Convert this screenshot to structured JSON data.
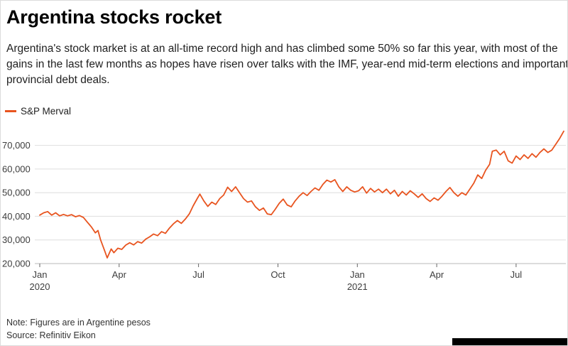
{
  "header": {
    "title": "Argentina stocks rocket",
    "description": "Argentina's stock market is at an all-time record high and has climbed some 50% so far this year, with most of the gains in the last few months as hopes have risen over talks with the IMF, year-end mid-term elections and important provincial debt deals."
  },
  "legend": {
    "label": "S&P Merval",
    "color": "#e8541f"
  },
  "footer": {
    "note": "Note: Figures are in Argentine pesos",
    "source": "Source: Refinitiv Eikon"
  },
  "chart_data": {
    "type": "line",
    "title": "Argentina stocks rocket",
    "x_unit": "months since Jan 2020",
    "ylim": [
      20000,
      78000
    ],
    "grid": true,
    "legend_position": "top-left",
    "y_ticks": [
      20000,
      30000,
      40000,
      50000,
      60000,
      70000
    ],
    "y_tick_labels": [
      "20,000",
      "30,000",
      "40,000",
      "50,000",
      "60,000",
      "70,000"
    ],
    "x_ticks": [
      {
        "t": 0,
        "label": "Jan",
        "year": "2020"
      },
      {
        "t": 3,
        "label": "Apr"
      },
      {
        "t": 6,
        "label": "Jul"
      },
      {
        "t": 9,
        "label": "Oct"
      },
      {
        "t": 12,
        "label": "Jan",
        "year": "2021"
      },
      {
        "t": 15,
        "label": "Apr"
      },
      {
        "t": 18,
        "label": "Jul"
      }
    ],
    "series": [
      {
        "name": "S&P Merval",
        "color": "#e8541f",
        "points": [
          [
            0,
            40500
          ],
          [
            0.15,
            41500
          ],
          [
            0.3,
            42000
          ],
          [
            0.45,
            40500
          ],
          [
            0.6,
            41500
          ],
          [
            0.75,
            40200
          ],
          [
            0.9,
            40800
          ],
          [
            1.05,
            40200
          ],
          [
            1.2,
            40700
          ],
          [
            1.35,
            39800
          ],
          [
            1.5,
            40300
          ],
          [
            1.65,
            39500
          ],
          [
            1.8,
            37500
          ],
          [
            1.95,
            35500
          ],
          [
            2.1,
            33000
          ],
          [
            2.2,
            34000
          ],
          [
            2.3,
            30000
          ],
          [
            2.45,
            25500
          ],
          [
            2.55,
            22400
          ],
          [
            2.7,
            26200
          ],
          [
            2.8,
            24600
          ],
          [
            2.95,
            26500
          ],
          [
            3.1,
            26000
          ],
          [
            3.25,
            27800
          ],
          [
            3.4,
            28800
          ],
          [
            3.55,
            27900
          ],
          [
            3.7,
            29300
          ],
          [
            3.85,
            28700
          ],
          [
            4.0,
            30300
          ],
          [
            4.15,
            31300
          ],
          [
            4.3,
            32500
          ],
          [
            4.45,
            31800
          ],
          [
            4.6,
            33500
          ],
          [
            4.75,
            32800
          ],
          [
            4.9,
            35000
          ],
          [
            5.05,
            36800
          ],
          [
            5.2,
            38200
          ],
          [
            5.35,
            37000
          ],
          [
            5.5,
            38800
          ],
          [
            5.65,
            41000
          ],
          [
            5.8,
            44500
          ],
          [
            5.95,
            47500
          ],
          [
            6.05,
            49400
          ],
          [
            6.2,
            46500
          ],
          [
            6.35,
            44200
          ],
          [
            6.5,
            46000
          ],
          [
            6.65,
            45000
          ],
          [
            6.8,
            47500
          ],
          [
            6.95,
            49000
          ],
          [
            7.1,
            52300
          ],
          [
            7.25,
            50500
          ],
          [
            7.4,
            52500
          ],
          [
            7.55,
            50000
          ],
          [
            7.7,
            47500
          ],
          [
            7.85,
            46000
          ],
          [
            8.0,
            46500
          ],
          [
            8.15,
            44000
          ],
          [
            8.3,
            42500
          ],
          [
            8.45,
            43500
          ],
          [
            8.6,
            41000
          ],
          [
            8.75,
            40700
          ],
          [
            8.9,
            43000
          ],
          [
            9.05,
            45500
          ],
          [
            9.2,
            47300
          ],
          [
            9.35,
            44800
          ],
          [
            9.5,
            44000
          ],
          [
            9.65,
            46500
          ],
          [
            9.8,
            48500
          ],
          [
            9.95,
            50000
          ],
          [
            10.1,
            48800
          ],
          [
            10.25,
            50500
          ],
          [
            10.4,
            52000
          ],
          [
            10.55,
            51000
          ],
          [
            10.7,
            53500
          ],
          [
            10.85,
            55300
          ],
          [
            11.0,
            54500
          ],
          [
            11.15,
            55500
          ],
          [
            11.3,
            52500
          ],
          [
            11.45,
            50500
          ],
          [
            11.6,
            52500
          ],
          [
            11.75,
            51000
          ],
          [
            11.9,
            50300
          ],
          [
            12.05,
            50800
          ],
          [
            12.2,
            52500
          ],
          [
            12.35,
            49800
          ],
          [
            12.5,
            51800
          ],
          [
            12.65,
            50300
          ],
          [
            12.8,
            51500
          ],
          [
            12.95,
            50000
          ],
          [
            13.1,
            51500
          ],
          [
            13.25,
            49500
          ],
          [
            13.4,
            51000
          ],
          [
            13.55,
            48500
          ],
          [
            13.7,
            50500
          ],
          [
            13.85,
            49000
          ],
          [
            14.0,
            50800
          ],
          [
            14.15,
            49500
          ],
          [
            14.3,
            48000
          ],
          [
            14.45,
            49500
          ],
          [
            14.6,
            47500
          ],
          [
            14.75,
            46300
          ],
          [
            14.9,
            47800
          ],
          [
            15.05,
            46800
          ],
          [
            15.2,
            48500
          ],
          [
            15.35,
            50500
          ],
          [
            15.5,
            52200
          ],
          [
            15.65,
            50000
          ],
          [
            15.8,
            48500
          ],
          [
            15.95,
            50000
          ],
          [
            16.1,
            49000
          ],
          [
            16.25,
            51500
          ],
          [
            16.4,
            54000
          ],
          [
            16.55,
            57500
          ],
          [
            16.7,
            56000
          ],
          [
            16.85,
            59500
          ],
          [
            17.0,
            62000
          ],
          [
            17.1,
            67500
          ],
          [
            17.25,
            68000
          ],
          [
            17.4,
            66000
          ],
          [
            17.55,
            67500
          ],
          [
            17.7,
            63500
          ],
          [
            17.85,
            62500
          ],
          [
            18.0,
            65500
          ],
          [
            18.15,
            64000
          ],
          [
            18.3,
            66000
          ],
          [
            18.45,
            64500
          ],
          [
            18.6,
            66500
          ],
          [
            18.75,
            65000
          ],
          [
            18.9,
            67000
          ],
          [
            19.05,
            68500
          ],
          [
            19.2,
            67000
          ],
          [
            19.35,
            68000
          ],
          [
            19.5,
            70500
          ],
          [
            19.65,
            73000
          ],
          [
            19.8,
            76000
          ]
        ]
      }
    ]
  }
}
